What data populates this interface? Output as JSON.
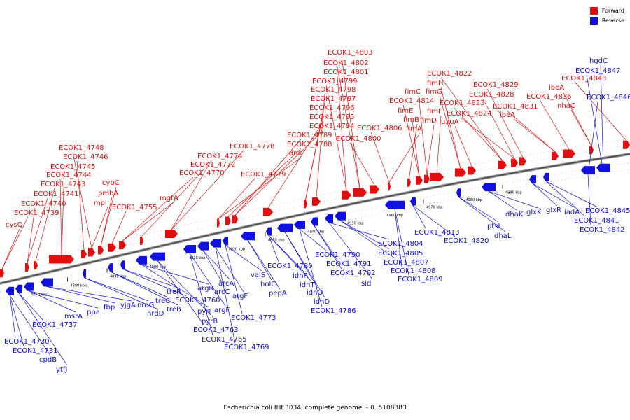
{
  "legend": [
    {
      "label": "Forward",
      "color": "#e01010"
    },
    {
      "label": "Reverse",
      "color": "#1010e0"
    }
  ],
  "caption": "Escherichia coli IHE3034, complete genome. - 0..5108383",
  "ticks": [
    "4870 kbp",
    "4880 kbp",
    "4890 kbp",
    "4900 kbp",
    "4910 kbp",
    "4920 kbp",
    "4930 kbp",
    "4940 kbp",
    "4950 kbp",
    "4960 kbp",
    "4970 kbp",
    "4980 kbp",
    "4990 kbp"
  ],
  "forward_genes": [
    "cysQ",
    "ECOK1_4739",
    "ECOK1_4740",
    "ECOK1_4741",
    "ECOK1_4743",
    "ECOK1_4744",
    "ECOK1_4745",
    "ECOK1_4746",
    "ECOK1_4748",
    "mpl",
    "pmbA",
    "cybC",
    "ECOK1_4755",
    "mgtA",
    "ECOK1_4770",
    "ECOK1_4772",
    "ECOK1_4774",
    "ECOK1_4778",
    "ECOK1_4779",
    "idnK",
    "ECOK1_4788",
    "ECOK1_4789",
    "ECOK1_4794",
    "ECOK1_4795",
    "ECOK1_4796",
    "ECOK1_4797",
    "ECOK1_4798",
    "ECOK1_4799",
    "ECOK1_4801",
    "ECOK1_4802",
    "ECOK1_4803",
    "ECOK1_4800",
    "ECOK1_4806",
    "fimA",
    "fimB",
    "fimE",
    "ECOK1_4814",
    "fimC",
    "fimD",
    "fimF",
    "fimG",
    "fimH",
    "uxuA",
    "ECOK1_4823",
    "ECOK1_4822",
    "ECOK1_4824",
    "ECOK1_4828",
    "ECOK1_4829",
    "ECOK1_4831",
    "ibeA",
    "ECOK1_4836",
    "nhaC",
    "ibeA",
    "ECOK1_4843"
  ],
  "reverse_genes": [
    "ECOK1_4730",
    "ECOK1_4731",
    "cpdB",
    "ytfJ",
    "ECOK1_4737",
    "msrA",
    "ppa",
    "fbp",
    "yjgA",
    "nrdG",
    "nrdD",
    "treC",
    "treB",
    "treR",
    "ECOK1_4760",
    "argR",
    "pyrI",
    "pyrB",
    "ECOK1_4763",
    "ECOK1_4765",
    "argF",
    "arcC",
    "arcA",
    "ECOK1_4769",
    "argF",
    "ECOK1_4773",
    "valS",
    "holC",
    "pepA",
    "ECOK1_4780",
    "idnR",
    "idnT",
    "idnO",
    "idnD",
    "ECOK1_4786",
    "ECOK1_4790",
    "ECOK1_4791",
    "ECOK1_4792",
    "sid",
    "ECOK1_4804",
    "ECOK1_4805",
    "ECOK1_4807",
    "ECOK1_4808",
    "ECOK1_4809",
    "ECOK1_4813",
    "ECOK1_4820",
    "ptsI",
    "dhaL",
    "dhaK",
    "glxK",
    "glxR",
    "iadA",
    "ECOK1_4845",
    "ECOK1_4841",
    "ECOK1_4842",
    "ECOK1_4846",
    "ECOK1_4847",
    "hgdC"
  ]
}
